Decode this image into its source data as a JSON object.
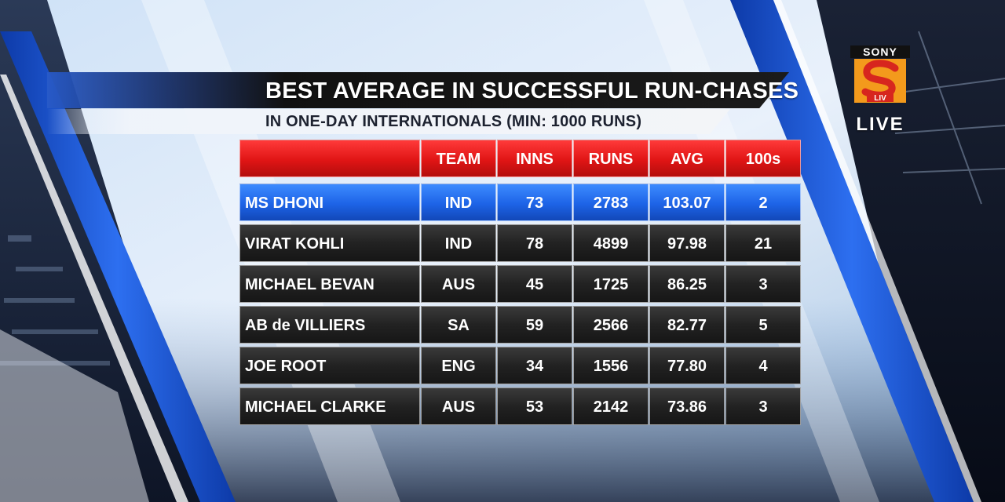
{
  "title": "BEST AVERAGE IN SUCCESSFUL RUN-CHASES",
  "subtitle": "IN ONE-DAY INTERNATIONALS (MIN: 1000 RUNS)",
  "logo": {
    "brand": "SONY",
    "mark_text": "LIV",
    "status": "LIVE",
    "colors": {
      "mark_orange": "#f39a1c",
      "mark_red": "#d7261e",
      "brand_bg": "#111111"
    }
  },
  "table": {
    "columns": [
      "",
      "TEAM",
      "INNS",
      "RUNS",
      "AVG",
      "100s"
    ],
    "rows": [
      {
        "player": "MS DHONI",
        "team": "IND",
        "inns": "73",
        "runs": "2783",
        "avg": "103.07",
        "hundreds": "2"
      },
      {
        "player": "VIRAT KOHLI",
        "team": "IND",
        "inns": "78",
        "runs": "4899",
        "avg": "97.98",
        "hundreds": "21"
      },
      {
        "player": "MICHAEL BEVAN",
        "team": "AUS",
        "inns": "45",
        "runs": "1725",
        "avg": "86.25",
        "hundreds": "3"
      },
      {
        "player": "AB de VILLIERS",
        "team": "SA",
        "inns": "59",
        "runs": "2566",
        "avg": "82.77",
        "hundreds": "5"
      },
      {
        "player": "JOE ROOT",
        "team": "ENG",
        "inns": "34",
        "runs": "1556",
        "avg": "77.80",
        "hundreds": "4"
      },
      {
        "player": "MICHAEL CLARKE",
        "team": "AUS",
        "inns": "53",
        "runs": "2142",
        "avg": "73.86",
        "hundreds": "3"
      }
    ],
    "highlight_row": 0
  },
  "colors": {
    "header_red": "#e01515",
    "highlight_blue": "#1d63e6",
    "row_dark": "#222222",
    "accent_stripe": "#1e55c8"
  }
}
